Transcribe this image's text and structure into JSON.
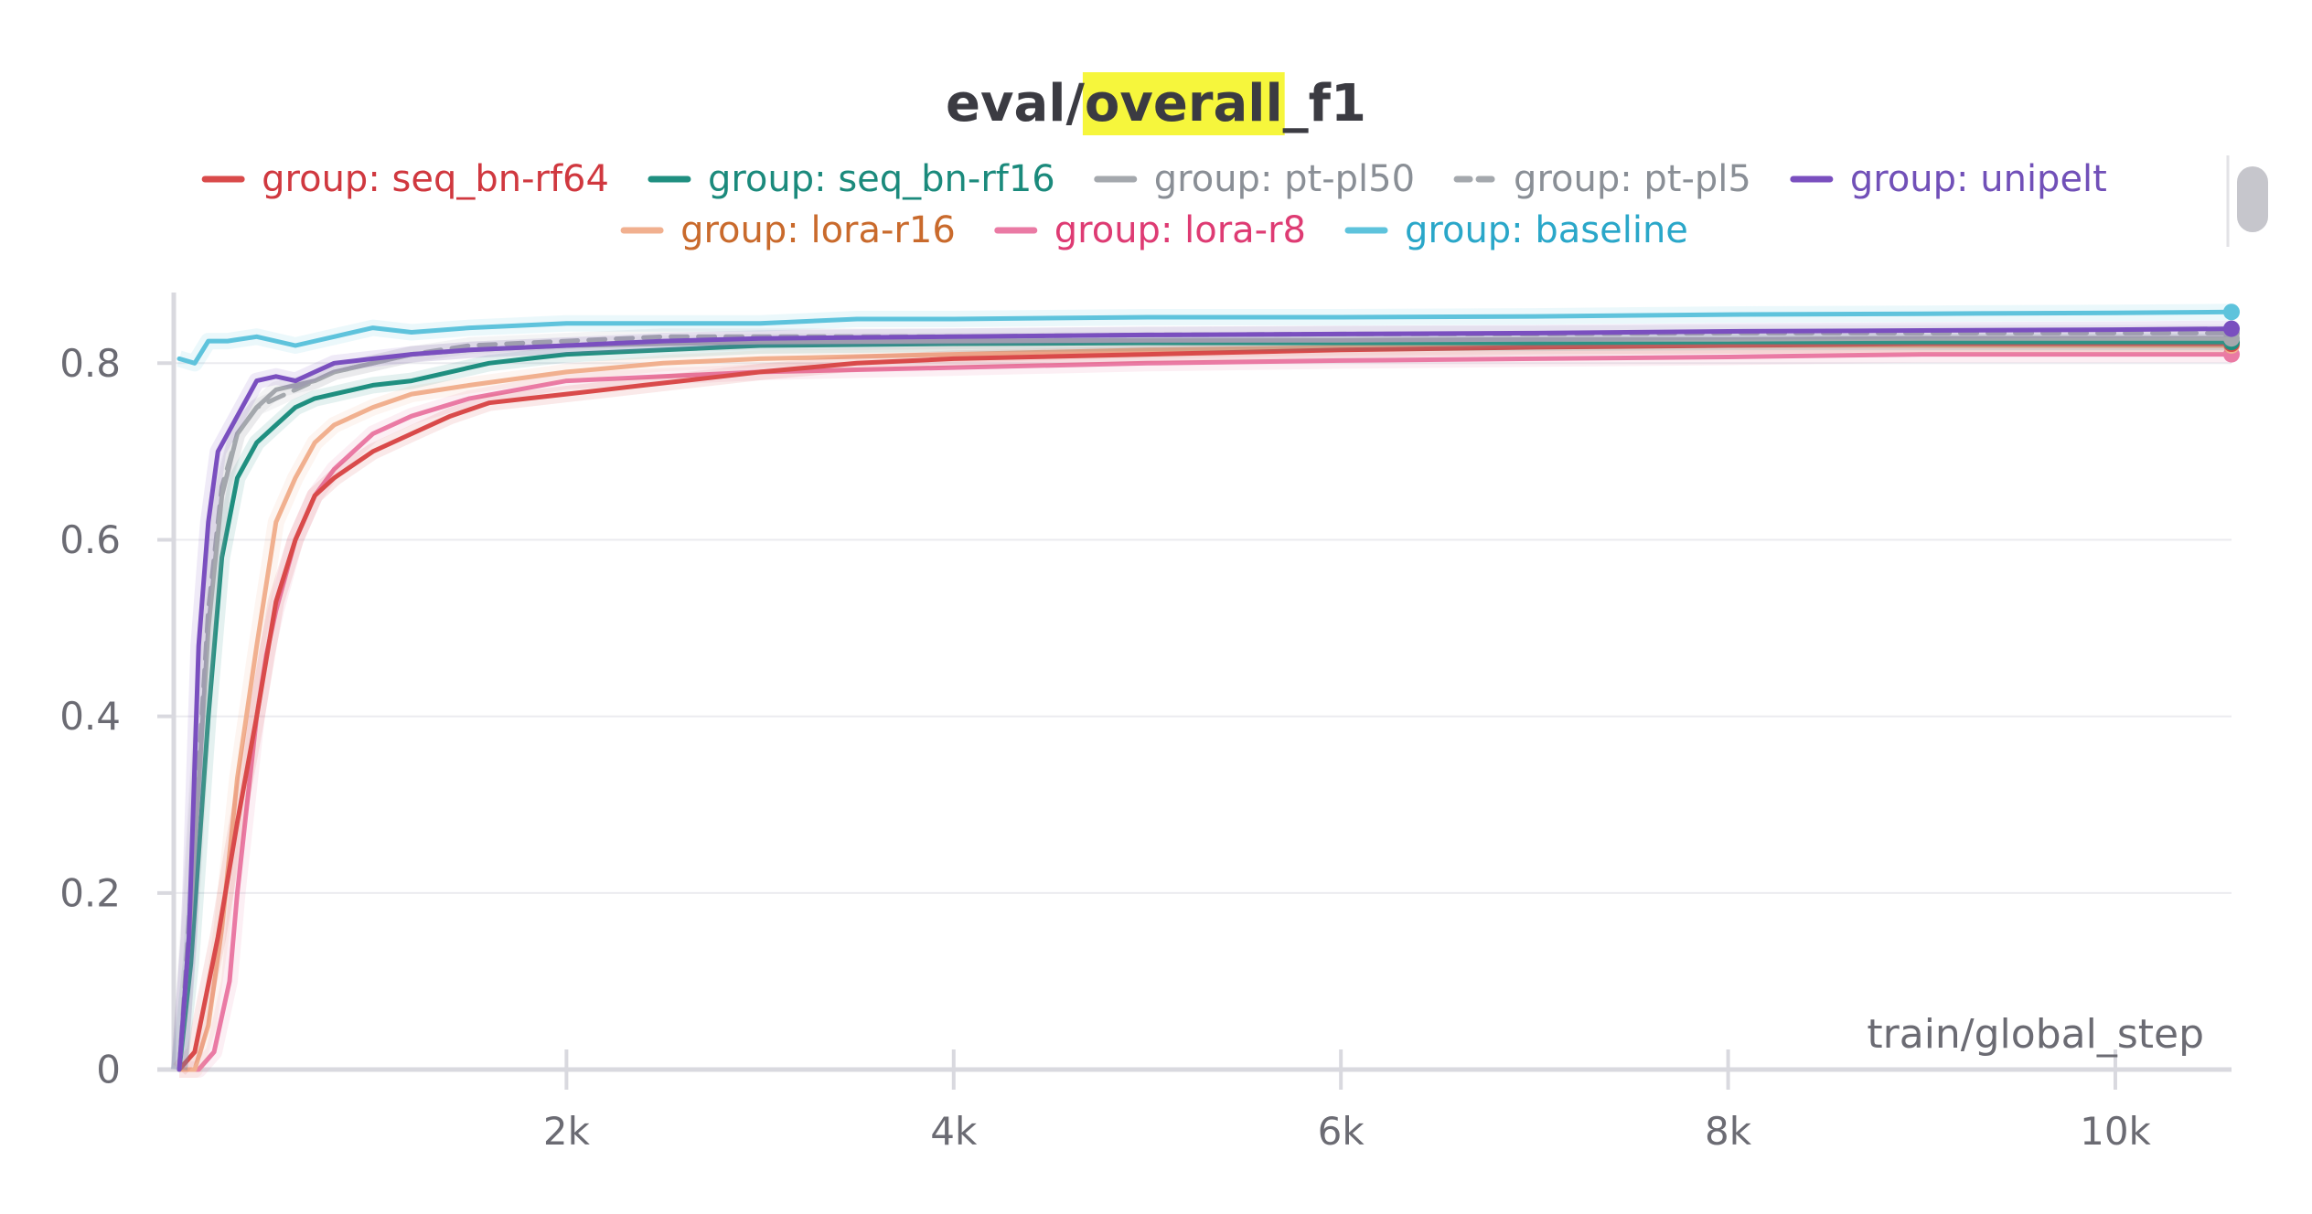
{
  "chart_data": {
    "type": "line",
    "title": {
      "prefix": "eval/",
      "highlight": "overall",
      "suffix": "_f1"
    },
    "xlabel": "train/global_step",
    "ylabel": "",
    "xlim": [
      0,
      10600
    ],
    "ylim": [
      0,
      0.88
    ],
    "yticks": [
      0,
      0.2,
      0.4,
      0.6,
      0.8
    ],
    "ytick_labels": [
      "0",
      "0.2",
      "0.4",
      "0.6",
      "0.8"
    ],
    "xticks": [
      2000,
      4000,
      6000,
      8000,
      10000
    ],
    "xtick_labels": [
      "2k",
      "4k",
      "6k",
      "8k",
      "10k"
    ],
    "grid": true,
    "legend": "top",
    "colors": {
      "highlight": "#f6f63c",
      "axis": "#d9d9df",
      "grid": "#ebebef"
    },
    "series": [
      {
        "name": "group: seq_bn-rf64",
        "color": "#d94a4a",
        "text_color": "#d0383f",
        "dashed": false,
        "x": [
          0,
          80,
          200,
          300,
          400,
          500,
          600,
          700,
          800,
          1000,
          1200,
          1400,
          1600,
          1800,
          2000,
          2200,
          2400,
          2600,
          2800,
          3000,
          3500,
          4000,
          5000,
          6000,
          7000,
          8000,
          9000,
          10000,
          10600
        ],
        "y": [
          0.0,
          0.02,
          0.15,
          0.28,
          0.4,
          0.53,
          0.6,
          0.65,
          0.67,
          0.7,
          0.72,
          0.74,
          0.755,
          0.76,
          0.765,
          0.77,
          0.775,
          0.78,
          0.785,
          0.79,
          0.8,
          0.805,
          0.81,
          0.815,
          0.818,
          0.82,
          0.822,
          0.822,
          0.822
        ]
      },
      {
        "name": "group: seq_bn-rf16",
        "color": "#1f8f80",
        "text_color": "#1b8a7c",
        "dashed": false,
        "x": [
          0,
          60,
          150,
          220,
          300,
          400,
          500,
          600,
          700,
          800,
          1000,
          1200,
          1400,
          1600,
          1800,
          2000,
          2500,
          3000,
          4000,
          5000,
          6000,
          7000,
          8000,
          9000,
          10000,
          10600
        ],
        "y": [
          0.0,
          0.12,
          0.4,
          0.58,
          0.67,
          0.71,
          0.73,
          0.75,
          0.76,
          0.765,
          0.775,
          0.78,
          0.79,
          0.8,
          0.805,
          0.81,
          0.815,
          0.82,
          0.822,
          0.823,
          0.823,
          0.823,
          0.824,
          0.824,
          0.824,
          0.824
        ]
      },
      {
        "name": "group: pt-pl50",
        "color": "#a4a8ad",
        "text_color": "#8a8f96",
        "dashed": false,
        "x": [
          0,
          60,
          150,
          220,
          300,
          400,
          500,
          600,
          700,
          800,
          1000,
          1200,
          1500,
          2000,
          2500,
          3000,
          4000,
          5000,
          6000,
          7000,
          8000,
          9000,
          10000,
          10600
        ],
        "y": [
          0.0,
          0.18,
          0.5,
          0.65,
          0.72,
          0.75,
          0.77,
          0.775,
          0.78,
          0.79,
          0.8,
          0.81,
          0.815,
          0.82,
          0.822,
          0.824,
          0.825,
          0.826,
          0.826,
          0.827,
          0.827,
          0.828,
          0.828,
          0.828
        ]
      },
      {
        "name": "group: pt-pl5",
        "color": "#a4a8ad",
        "text_color": "#8a8f96",
        "dashed": true,
        "x": [
          0,
          60,
          150,
          220,
          300,
          400,
          500,
          600,
          700,
          800,
          1000,
          1200,
          1500,
          2000,
          2500,
          3000,
          4000,
          5000,
          6000,
          7000,
          8000,
          9000,
          10000,
          10600
        ],
        "y": [
          0.0,
          0.2,
          0.52,
          0.66,
          0.72,
          0.75,
          0.76,
          0.77,
          0.78,
          0.79,
          0.8,
          0.81,
          0.82,
          0.825,
          0.83,
          0.83,
          0.83,
          0.832,
          0.833,
          0.833,
          0.834,
          0.834,
          0.834,
          0.834
        ]
      },
      {
        "name": "group: unipelt",
        "color": "#7a4fbf",
        "text_color": "#7150b8",
        "dashed": false,
        "x": [
          0,
          50,
          100,
          150,
          200,
          300,
          400,
          500,
          600,
          700,
          800,
          1000,
          1200,
          1500,
          2000,
          2500,
          3000,
          4000,
          5000,
          6000,
          7000,
          8000,
          9000,
          10000,
          10600
        ],
        "y": [
          0.0,
          0.15,
          0.48,
          0.62,
          0.7,
          0.74,
          0.78,
          0.785,
          0.78,
          0.79,
          0.8,
          0.805,
          0.81,
          0.815,
          0.82,
          0.825,
          0.828,
          0.83,
          0.832,
          0.833,
          0.834,
          0.836,
          0.837,
          0.838,
          0.839
        ]
      },
      {
        "name": "group: lora-r16",
        "color": "#f1b08f",
        "text_color": "#c96a2c",
        "dashed": false,
        "x": [
          0,
          80,
          150,
          220,
          300,
          400,
          500,
          600,
          700,
          800,
          1000,
          1200,
          1500,
          2000,
          2500,
          3000,
          4000,
          5000,
          6000,
          7000,
          8000,
          9000,
          10000,
          10600
        ],
        "y": [
          0.0,
          0.0,
          0.05,
          0.16,
          0.33,
          0.48,
          0.62,
          0.67,
          0.71,
          0.73,
          0.75,
          0.765,
          0.775,
          0.79,
          0.8,
          0.805,
          0.81,
          0.815,
          0.818,
          0.82,
          0.82,
          0.82,
          0.82,
          0.82
        ]
      },
      {
        "name": "group: lora-r8",
        "color": "#ea7aa4",
        "text_color": "#de3b73",
        "dashed": false,
        "x": [
          0,
          100,
          180,
          260,
          300,
          400,
          450,
          500,
          600,
          700,
          800,
          900,
          1000,
          1200,
          1500,
          2000,
          2500,
          3000,
          4000,
          5000,
          6000,
          7000,
          8000,
          9000,
          10000,
          10600
        ],
        "y": [
          0.0,
          0.0,
          0.02,
          0.1,
          0.2,
          0.4,
          0.47,
          0.52,
          0.6,
          0.65,
          0.68,
          0.7,
          0.72,
          0.74,
          0.76,
          0.78,
          0.785,
          0.79,
          0.795,
          0.8,
          0.803,
          0.805,
          0.807,
          0.81,
          0.81,
          0.81
        ]
      },
      {
        "name": "group: baseline",
        "color": "#5ec3dc",
        "text_color": "#2aa7c9",
        "dashed": false,
        "x": [
          0,
          80,
          150,
          250,
          400,
          600,
          800,
          1000,
          1200,
          1500,
          2000,
          2500,
          3000,
          3500,
          4000,
          5000,
          6000,
          7000,
          8000,
          9000,
          10000,
          10600
        ],
        "y": [
          0.805,
          0.8,
          0.825,
          0.825,
          0.83,
          0.82,
          0.83,
          0.84,
          0.835,
          0.84,
          0.845,
          0.845,
          0.845,
          0.85,
          0.85,
          0.852,
          0.852,
          0.853,
          0.855,
          0.856,
          0.857,
          0.858
        ]
      }
    ]
  }
}
